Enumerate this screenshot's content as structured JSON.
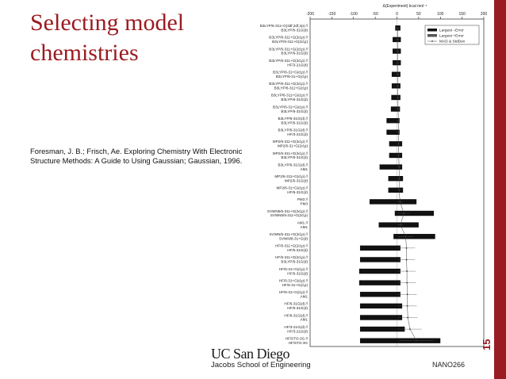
{
  "slide": {
    "title_line1": "Selecting model",
    "title_line2": "chemistries",
    "citation": "Foresman, J. B.; Frisch, Ae. Exploring Chemistry With Electronic Structure Methods: A Guide to Using Gaussian; Gaussian, 1996.",
    "logo_main": "UC San Diego",
    "logo_sub": "Jacobs School of Engineering",
    "course": "NANO266",
    "page_number": "15",
    "accent_color": "#9b1b22"
  },
  "chart_data": {
    "type": "bar",
    "orientation": "horizontal",
    "xlabel": "Δ(Experiment) kcal mol⁻¹",
    "xlim": [
      -200,
      200
    ],
    "xticks": [
      -200,
      -150,
      -100,
      -50,
      0,
      50,
      100,
      150,
      200
    ],
    "legend": {
      "placement": "top-right",
      "entries": [
        "Largest –Error",
        "Largest +Error",
        "MAD & StdDev"
      ]
    },
    "grid": false,
    "rows": [
      {
        "label": "B3LYP/6-311+G(3df,2df,2p) // B3LYP/6-31G(d)",
        "min": -4,
        "max": 8,
        "mad": 1.5
      },
      {
        "label": "B3LYP/6-311+G(2d,p) // B3LYP/6-311+G(2d,p)",
        "min": -10,
        "max": 9,
        "mad": 2
      },
      {
        "label": "B3LYP/6-311+G(2d,p) // B3LYP/6-31G(d)",
        "min": -10,
        "max": 9,
        "mad": 2
      },
      {
        "label": "B3LYP/6-311+G(2d,p) // HF/3-21G(d)",
        "min": -10,
        "max": 9,
        "mad": 2
      },
      {
        "label": "B3LYP/6-31+G(d,p) // B3LYP/6-31+G(d,p)",
        "min": -12,
        "max": 8,
        "mad": 2
      },
      {
        "label": "B3LYP/6-311+G(2d,p) // B3LYP/6-311+G(d,p)",
        "min": -12,
        "max": 8,
        "mad": 2
      },
      {
        "label": "B3LYP/6-311+G(d,p) // B3LYP/6-31G(d)",
        "min": -13,
        "max": 8,
        "mad": 2.5
      },
      {
        "label": "B3LYP/6-31+G(d,p) // B3LYP/6-31G(d)",
        "min": -14,
        "max": 7,
        "mad": 2.5
      },
      {
        "label": "B3LYP/6-31G(d) // B3LYP/6-31G(d)",
        "min": -24,
        "max": 6,
        "mad": 3.5
      },
      {
        "label": "B3LYP/6-31G(d) // HF/3-21G(d)",
        "min": -24,
        "max": 6,
        "mad": 3.5
      },
      {
        "label": "MP2/6-311+G(2d,p) // MP2/6-31+G(2d,p)",
        "min": -18,
        "max": 12,
        "mad": 4
      },
      {
        "label": "MP2/6-311+G(2d,p) // B3LYP/6-31G(d)",
        "min": -18,
        "max": 12,
        "mad": 4
      },
      {
        "label": "B3LYP/6-31G(d) // AM1",
        "min": -40,
        "max": 12,
        "mad": 5
      },
      {
        "label": "MP2/6-311+G(d,p) // MP2/6-31G(d)",
        "min": -20,
        "max": 14,
        "mad": 5
      },
      {
        "label": "MP2/6-31+G(d,p) // HF/6-31G(d)",
        "min": -20,
        "max": 14,
        "mad": 5
      },
      {
        "label": "PM3 // PM3",
        "min": -63,
        "max": 45,
        "mad": 7
      },
      {
        "label": "SVWN5/6-311+G(2d,p) // SVWN5/6-311+G(2d,p)",
        "min": -5,
        "max": 85,
        "mad": 16
      },
      {
        "label": "AM1 // AM1",
        "min": -42,
        "max": 50,
        "mad": 8
      },
      {
        "label": "SVWN/6-311+G(2d,p) // SVWN/6-31+G(d)",
        "min": -8,
        "max": 88,
        "mad": 20
      },
      {
        "label": "HF/6-311+G(2d,p) // HF/6-31G(d)",
        "min": -85,
        "max": 8,
        "mad": 22
      },
      {
        "label": "HF/6-311+G(2d,p) // B3LYP/6-31G(d)",
        "min": -85,
        "max": 8,
        "mad": 22
      },
      {
        "label": "HF/6-31+G(d,p) // HF/6-31G(d)",
        "min": -87,
        "max": 8,
        "mad": 23
      },
      {
        "label": "HF/6-31+G(d,p) // HF/6-31+G(d,p)",
        "min": -87,
        "max": 8,
        "mad": 23
      },
      {
        "label": "HF/6-31+G(d,p) // AM1",
        "min": -85,
        "max": 8,
        "mad": 24
      },
      {
        "label": "HF/6-31G(d) // HF/6-31G(d)",
        "min": -85,
        "max": 12,
        "mad": 24
      },
      {
        "label": "HF/6-31G(d) // AM1",
        "min": -85,
        "max": 12,
        "mad": 25
      },
      {
        "label": "HF/3-21G(d) // HF/3-21G(d)",
        "min": -85,
        "max": 18,
        "mad": 30
      },
      {
        "label": "HF/STO-3G // HF/STO-3G",
        "min": -85,
        "max": 100,
        "mad": 45
      }
    ]
  }
}
